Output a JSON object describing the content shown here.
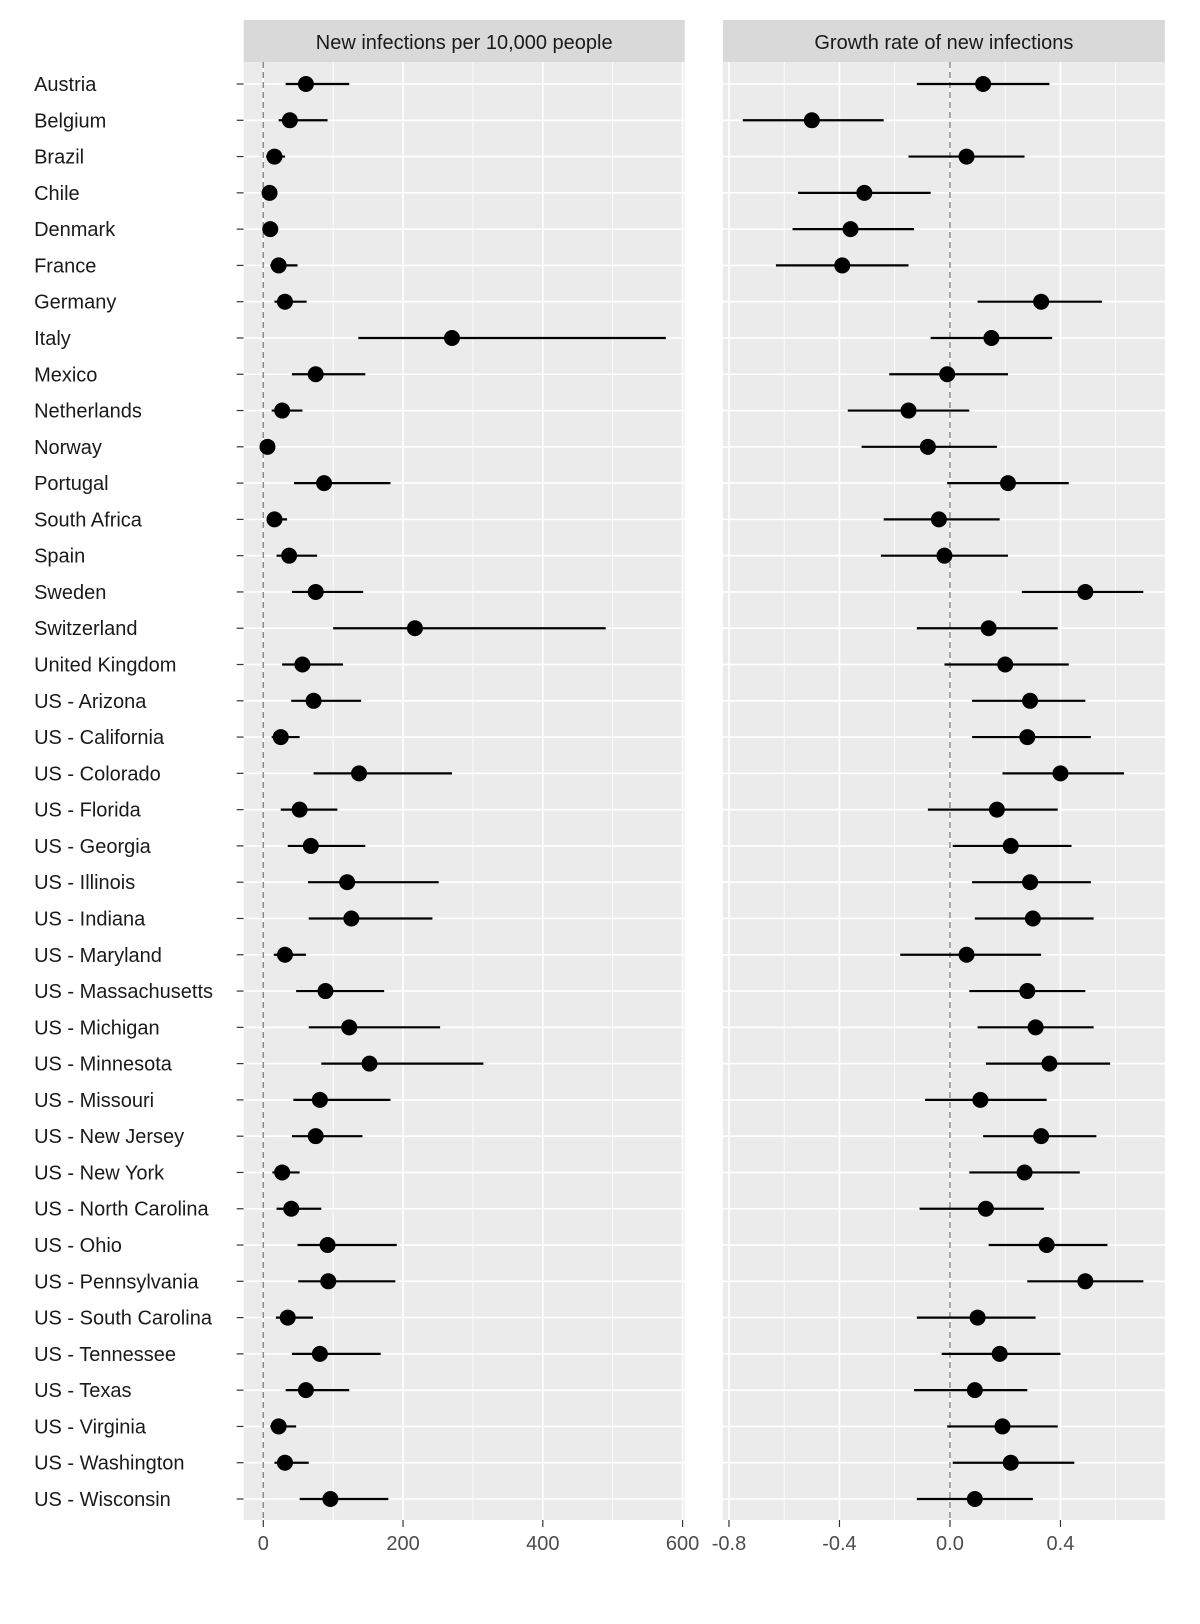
{
  "chart_data": [
    {
      "type": "forest",
      "title": "New infections per 10,000 people",
      "xlim": [
        -28,
        603
      ],
      "xticks": [
        0,
        200,
        400,
        600
      ],
      "reference_line": 0,
      "grid": true,
      "categories": [
        "Austria",
        "Belgium",
        "Brazil",
        "Chile",
        "Denmark",
        "France",
        "Germany",
        "Italy",
        "Mexico",
        "Netherlands",
        "Norway",
        "Portugal",
        "South Africa",
        "Spain",
        "Sweden",
        "Switzerland",
        "United Kingdom",
        "US - Arizona",
        "US - California",
        "US - Colorado",
        "US - Florida",
        "US - Georgia",
        "US - Illinois",
        "US - Indiana",
        "US - Maryland",
        "US - Massachusetts",
        "US - Michigan",
        "US - Minnesota",
        "US - Missouri",
        "US - New Jersey",
        "US - New York",
        "US - North Carolina",
        "US - Ohio",
        "US - Pennsylvania",
        "US - South Carolina",
        "US - Tennessee",
        "US - Texas",
        "US - Virginia",
        "US - Washington",
        "US - Wisconsin"
      ],
      "estimate": [
        61,
        38,
        16,
        9,
        10,
        22,
        31,
        270,
        75,
        27,
        6,
        87,
        16,
        37,
        75,
        217,
        56,
        72,
        25,
        137,
        52,
        68,
        120,
        126,
        31,
        89,
        123,
        152,
        81,
        75,
        27,
        40,
        92,
        93,
        35,
        81,
        61,
        22,
        31,
        96
      ],
      "lower": [
        32,
        22,
        4,
        1,
        2,
        10,
        16,
        136,
        41,
        12,
        1,
        44,
        5,
        19,
        41,
        100,
        27,
        40,
        12,
        72,
        25,
        35,
        64,
        65,
        15,
        47,
        65,
        83,
        43,
        41,
        13,
        19,
        49,
        50,
        18,
        41,
        32,
        10,
        16,
        52
      ],
      "upper": [
        123,
        92,
        31,
        18,
        19,
        49,
        62,
        576,
        146,
        56,
        13,
        182,
        34,
        77,
        143,
        490,
        114,
        140,
        52,
        270,
        106,
        146,
        251,
        242,
        61,
        173,
        253,
        315,
        182,
        142,
        52,
        83,
        191,
        189,
        71,
        168,
        123,
        47,
        65,
        179
      ]
    },
    {
      "type": "forest",
      "title": "Growth rate of new infections",
      "xlim": [
        -0.822,
        0.778
      ],
      "xticks": [
        -0.8,
        -0.4,
        0.0,
        0.4
      ],
      "xtick_labels": [
        "-0.8",
        "-0.4",
        "0.0",
        "0.4"
      ],
      "reference_line": 0,
      "grid": true,
      "estimate": [
        0.12,
        -0.5,
        0.06,
        -0.31,
        -0.36,
        -0.39,
        0.33,
        0.15,
        -0.01,
        -0.15,
        -0.08,
        0.21,
        -0.04,
        -0.02,
        0.49,
        0.14,
        0.2,
        0.29,
        0.28,
        0.4,
        0.17,
        0.22,
        0.29,
        0.3,
        0.06,
        0.28,
        0.31,
        0.36,
        0.11,
        0.33,
        0.27,
        0.13,
        0.35,
        0.49,
        0.1,
        0.18,
        0.09,
        0.19,
        0.22,
        0.09
      ],
      "lower": [
        -0.12,
        -0.75,
        -0.15,
        -0.55,
        -0.57,
        -0.63,
        0.1,
        -0.07,
        -0.22,
        -0.37,
        -0.32,
        -0.01,
        -0.24,
        -0.25,
        0.26,
        -0.12,
        -0.02,
        0.08,
        0.08,
        0.19,
        -0.08,
        0.01,
        0.08,
        0.09,
        -0.18,
        0.07,
        0.1,
        0.13,
        -0.09,
        0.12,
        0.07,
        -0.11,
        0.14,
        0.28,
        -0.12,
        -0.03,
        -0.13,
        -0.01,
        0.01,
        -0.12
      ],
      "upper": [
        0.36,
        -0.24,
        0.27,
        -0.07,
        -0.13,
        -0.15,
        0.55,
        0.37,
        0.21,
        0.07,
        0.17,
        0.43,
        0.18,
        0.21,
        0.7,
        0.39,
        0.43,
        0.49,
        0.51,
        0.63,
        0.39,
        0.44,
        0.51,
        0.52,
        0.33,
        0.49,
        0.52,
        0.58,
        0.35,
        0.53,
        0.47,
        0.34,
        0.57,
        0.7,
        0.31,
        0.4,
        0.28,
        0.39,
        0.45,
        0.3
      ]
    }
  ],
  "colors": {
    "panel": "#ebebeb",
    "strip": "#d9d9d9",
    "point": "#000000",
    "grid": "#ffffff",
    "reference": "#8c8c8c"
  }
}
